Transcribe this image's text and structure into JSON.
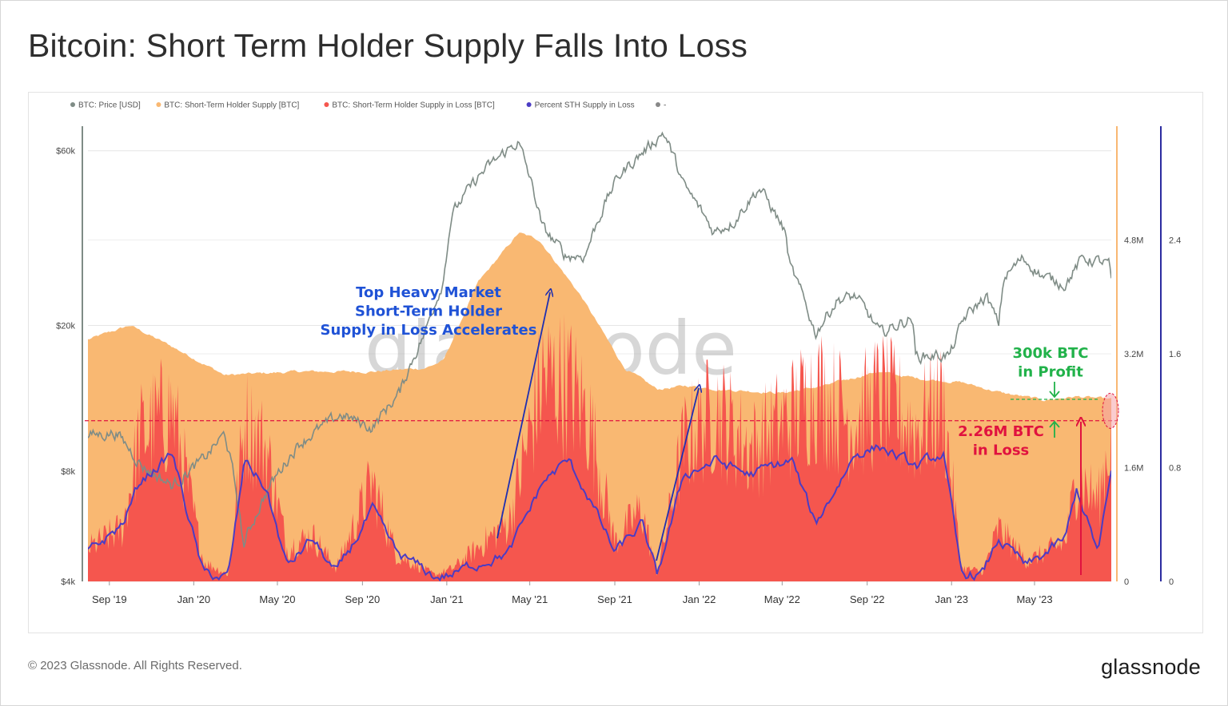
{
  "page": {
    "title": "Bitcoin: Short Term Holder Supply Falls Into Loss",
    "copyright": "© 2023 Glassnode. All Rights Reserved.",
    "brand": "glassnode",
    "watermark": "glassnode"
  },
  "chart_data": {
    "type": "area",
    "legend": [
      {
        "name": "BTC: Price [USD]",
        "color": "#7f8c86"
      },
      {
        "name": "BTC: Short-Term Holder Supply [BTC]",
        "color": "#f9b872"
      },
      {
        "name": "BTC: Short-Term Holder Supply in Loss [BTC]",
        "color": "#f5564e"
      },
      {
        "name": "Percent STH Supply in Loss",
        "color": "#4b3cc4"
      },
      {
        "name": "-",
        "color": "#888888"
      }
    ],
    "x_ticks": [
      "Sep '19",
      "Jan '20",
      "May '20",
      "Sep '20",
      "Jan '21",
      "May '21",
      "Sep '21",
      "Jan '22",
      "May '22",
      "Sep '22",
      "Jan '23",
      "May '23"
    ],
    "x_range": [
      "2019-08-01",
      "2023-08-20"
    ],
    "y_left": {
      "label": "BTC: Price [USD]",
      "scale": "log",
      "ticks": [
        "$4k",
        "$8k",
        "$20k",
        "$60k"
      ],
      "tick_values": [
        4000,
        8000,
        20000,
        60000
      ],
      "range": [
        4000,
        70000
      ]
    },
    "y_right_supply": {
      "label": "BTC",
      "ticks": [
        "0",
        "1.6M",
        "3.2M",
        "4.8M"
      ],
      "tick_values": [
        0,
        1.6,
        3.2,
        4.8
      ],
      "range_millions": [
        0,
        6.4
      ]
    },
    "y_right_percent": {
      "ticks": [
        "0",
        "0.8",
        "1.6",
        "2.4"
      ],
      "tick_values": [
        0,
        0.8,
        1.6,
        2.4
      ],
      "range": [
        0,
        3.2
      ]
    },
    "grid": true,
    "series": [
      {
        "name": "BTC: Price [USD]",
        "unit": "USD",
        "dates": [
          "2019-08-01",
          "2019-09-10",
          "2019-10-20",
          "2019-12-01",
          "2020-01-15",
          "2020-02-15",
          "2020-03-13",
          "2020-04-15",
          "2020-06-01",
          "2020-08-01",
          "2020-09-15",
          "2020-10-25",
          "2020-12-01",
          "2020-12-27",
          "2021-01-08",
          "2021-02-20",
          "2021-04-14",
          "2021-05-19",
          "2021-06-22",
          "2021-07-20",
          "2021-09-06",
          "2021-10-20",
          "2021-11-10",
          "2021-12-10",
          "2022-01-22",
          "2022-02-20",
          "2022-03-29",
          "2022-05-05",
          "2022-05-12",
          "2022-06-18",
          "2022-07-20",
          "2022-08-15",
          "2022-09-20",
          "2022-11-05",
          "2022-11-10",
          "2022-12-30",
          "2023-01-20",
          "2023-02-20",
          "2023-03-10",
          "2023-03-18",
          "2023-04-14",
          "2023-05-15",
          "2023-06-15",
          "2023-07-10",
          "2023-08-16",
          "2023-08-20"
        ],
        "values": [
          10000,
          10200,
          8200,
          7300,
          8600,
          10100,
          5000,
          7000,
          9500,
          11400,
          10500,
          13100,
          19200,
          26500,
          40000,
          52000,
          63500,
          37000,
          31000,
          31000,
          51000,
          61500,
          67500,
          48000,
          36000,
          38500,
          47500,
          36000,
          29000,
          19000,
          23500,
          24000,
          19000,
          21000,
          16500,
          16600,
          21000,
          24000,
          20000,
          27000,
          30500,
          27000,
          26000,
          30500,
          29500,
          26500
        ]
      },
      {
        "name": "BTC: Short-Term Holder Supply [BTC]",
        "unit": "M BTC",
        "dates": [
          "2019-08-01",
          "2019-10-01",
          "2019-12-01",
          "2020-02-15",
          "2020-06-01",
          "2020-09-15",
          "2020-12-01",
          "2020-12-27",
          "2021-02-15",
          "2021-04-15",
          "2021-05-15",
          "2021-07-15",
          "2021-09-15",
          "2021-11-01",
          "2021-12-15",
          "2022-02-01",
          "2022-05-01",
          "2022-07-01",
          "2022-09-15",
          "2022-11-15",
          "2023-01-15",
          "2023-03-15",
          "2023-05-15",
          "2023-07-01",
          "2023-08-20"
        ],
        "values": [
          3.4,
          3.6,
          3.3,
          2.9,
          2.95,
          2.95,
          3.0,
          3.1,
          4.2,
          4.9,
          4.8,
          4.0,
          3.0,
          2.7,
          2.75,
          2.7,
          2.65,
          2.75,
          2.95,
          2.85,
          2.8,
          2.65,
          2.55,
          2.6,
          2.56
        ]
      },
      {
        "name": "BTC: Short-Term Holder Supply in Loss [BTC]",
        "unit": "M BTC",
        "dates": [
          "2019-08-01",
          "2019-09-20",
          "2019-10-15",
          "2019-12-01",
          "2020-01-15",
          "2020-02-20",
          "2020-03-15",
          "2020-04-15",
          "2020-05-15",
          "2020-06-20",
          "2020-07-25",
          "2020-09-15",
          "2020-10-20",
          "2020-12-15",
          "2021-01-10",
          "2021-02-25",
          "2021-04-01",
          "2021-05-20",
          "2021-06-25",
          "2021-07-25",
          "2021-09-01",
          "2021-10-10",
          "2021-11-01",
          "2021-12-10",
          "2022-01-25",
          "2022-03-15",
          "2022-05-15",
          "2022-06-18",
          "2022-08-15",
          "2022-09-20",
          "2022-11-10",
          "2022-12-20",
          "2023-01-15",
          "2023-02-15",
          "2023-03-10",
          "2023-04-20",
          "2023-06-15",
          "2023-07-01",
          "2023-08-01",
          "2023-08-20"
        ],
        "values": [
          0.5,
          0.8,
          2.2,
          2.6,
          0.3,
          0.1,
          2.4,
          2.0,
          0.5,
          0.7,
          0.2,
          1.5,
          0.4,
          0.1,
          0.2,
          0.6,
          0.9,
          3.1,
          3.0,
          2.5,
          0.6,
          1.1,
          0.1,
          2.1,
          2.6,
          2.0,
          2.5,
          2.9,
          2.4,
          2.8,
          2.3,
          2.7,
          0.2,
          0.15,
          0.8,
          0.3,
          0.6,
          1.6,
          1.2,
          2.26
        ]
      },
      {
        "name": "Percent STH Supply in Loss",
        "unit": "ratio",
        "dates": [
          "2019-08-01",
          "2019-09-20",
          "2019-10-15",
          "2019-12-01",
          "2020-01-15",
          "2020-02-20",
          "2020-03-15",
          "2020-04-15",
          "2020-05-15",
          "2020-06-20",
          "2020-07-25",
          "2020-09-15",
          "2020-10-20",
          "2020-12-15",
          "2021-01-10",
          "2021-02-25",
          "2021-04-01",
          "2021-05-20",
          "2021-06-25",
          "2021-07-25",
          "2021-09-01",
          "2021-10-10",
          "2021-11-01",
          "2021-12-10",
          "2022-01-25",
          "2022-03-15",
          "2022-05-15",
          "2022-06-18",
          "2022-08-15",
          "2022-09-20",
          "2022-11-10",
          "2022-12-20",
          "2023-01-15",
          "2023-02-15",
          "2023-03-10",
          "2023-04-20",
          "2023-06-15",
          "2023-07-01",
          "2023-08-01",
          "2023-08-20"
        ],
        "values": [
          0.2,
          0.4,
          0.7,
          0.9,
          0.05,
          0.03,
          0.85,
          0.65,
          0.1,
          0.3,
          0.05,
          0.5,
          0.2,
          0.03,
          0.05,
          0.15,
          0.2,
          0.7,
          0.85,
          0.6,
          0.2,
          0.4,
          0.03,
          0.75,
          0.85,
          0.75,
          0.85,
          0.4,
          0.9,
          0.95,
          0.8,
          0.9,
          0.05,
          0.05,
          0.3,
          0.1,
          0.3,
          0.65,
          0.2,
          0.75
        ]
      }
    ],
    "reference_line": {
      "value_millions": 2.26,
      "style": "dashed",
      "color": "#e0123f"
    },
    "profit_line": {
      "value_millions": 2.56,
      "style": "dashed",
      "color": "#21b24a"
    },
    "annotations": [
      {
        "lines": [
          "Top Heavy Market",
          "Short-Term Holder",
          "Supply in Loss Accelerates"
        ],
        "color": "#1f52d6"
      },
      {
        "lines": [
          "300k BTC",
          "in Profit"
        ],
        "color": "#21b24a"
      },
      {
        "lines": [
          "2.26M BTC",
          "in Loss"
        ],
        "color": "#e0123f"
      }
    ]
  }
}
